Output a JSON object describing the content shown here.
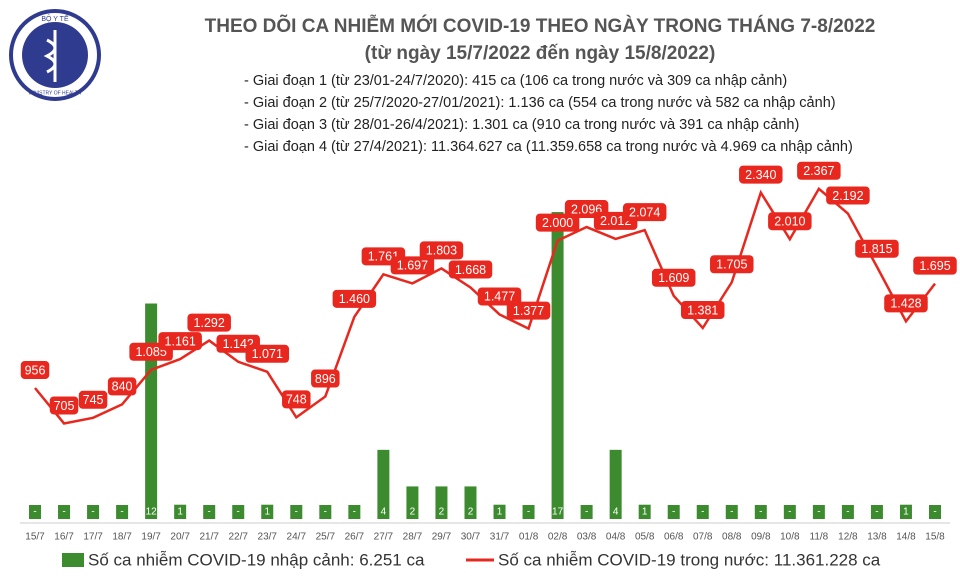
{
  "logo": {
    "top": "BỘ Y TẾ",
    "bottom": "MINISTRY OF HEALTH"
  },
  "chart_data": {
    "type": "bar-line",
    "title": "THEO DÕI CA NHIỄM MỚI COVID-19 THEO NGÀY TRONG THÁNG 7-8/2022",
    "subtitle": "(từ ngày 15/7/2022 đến ngày 15/8/2022)",
    "annotations": [
      "- Giai đoạn 1 (từ 23/01-24/7/2020): 415 ca (106 ca trong nước và 309 ca nhập cảnh)",
      "- Giai đoạn 2 (từ 25/7/2020-27/01/2021): 1.136 ca (554 ca trong nước và 582 ca nhập cảnh)",
      "- Giai đoạn 3 (từ 28/01-26/4/2021): 1.301 ca (910 ca trong nước và 391 ca nhập cảnh)",
      "- Giai đoạn 4 (từ 27/4/2021): 11.364.627 ca (11.359.658 ca trong nước và 4.969 ca nhập cảnh)"
    ],
    "categories": [
      "15/7",
      "16/7",
      "17/7",
      "18/7",
      "19/7",
      "20/7",
      "21/7",
      "22/7",
      "23/7",
      "24/7",
      "25/7",
      "26/7",
      "27/7",
      "28/7",
      "29/7",
      "30/7",
      "31/7",
      "01/8",
      "02/8",
      "03/8",
      "04/8",
      "05/8",
      "06/8",
      "07/8",
      "08/8",
      "09/8",
      "10/8",
      "11/8",
      "12/8",
      "13/8",
      "14/8",
      "15/8"
    ],
    "ylim": [
      0,
      2500
    ],
    "y2lim": [
      0,
      19.3
    ],
    "series": [
      {
        "name": "Số ca nhiễm COVID-19 nhập cảnh: 6.251 ca",
        "type": "bar",
        "axis": "y2",
        "color": "#3d8b2f",
        "values": [
          0,
          0,
          0,
          0,
          12,
          1,
          0,
          0,
          1,
          0,
          0,
          0,
          4,
          2,
          2,
          2,
          1,
          0,
          17,
          0,
          4,
          1,
          0,
          0,
          0,
          0,
          0,
          0,
          0,
          0,
          1,
          0
        ],
        "value_labels": [
          "-",
          "-",
          "-",
          "-",
          "12",
          "1",
          "-",
          "-",
          "1",
          "-",
          "-",
          "-",
          "4",
          "2",
          "2",
          "2",
          "1",
          "-",
          "17",
          "-",
          "4",
          "1",
          "-",
          "-",
          "-",
          "-",
          "-",
          "-",
          "-",
          "-",
          "1",
          "-"
        ]
      },
      {
        "name": "Số ca nhiễm COVID-19 trong nước: 11.361.228 ca",
        "type": "line",
        "color": "#e8281e",
        "values": [
          956,
          705,
          745,
          840,
          1085,
          1161,
          1292,
          1142,
          1071,
          748,
          896,
          1460,
          1761,
          1697,
          1803,
          1668,
          1477,
          1377,
          2000,
          2096,
          2012,
          2074,
          1609,
          1381,
          1705,
          2340,
          2010,
          2367,
          2192,
          1815,
          1428,
          1695
        ],
        "value_labels": [
          "956",
          "705",
          "745",
          "840",
          "1.085",
          "1.161",
          "1.292",
          "1.142",
          "1.071",
          "748",
          "896",
          "1.460",
          "1.761",
          "1.697",
          "1.803",
          "1.668",
          "1.477",
          "1.377",
          "2.000",
          "2.096",
          "2.012",
          "2.074",
          "1.609",
          "1.381",
          "1.705",
          "2.340",
          "2.010",
          "2.367",
          "2.192",
          "1.815",
          "1.428",
          "1.695"
        ]
      }
    ]
  }
}
